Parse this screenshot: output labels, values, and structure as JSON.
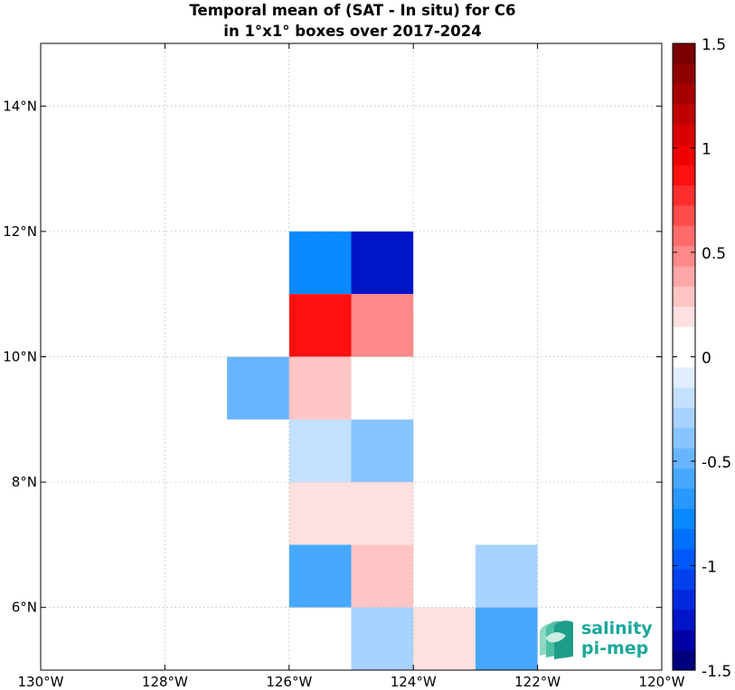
{
  "chart_data": {
    "type": "heatmap",
    "title_lines": [
      "Temporal mean of (SAT - In situ) for C6",
      "in 1°x1° boxes over 2017-2024"
    ],
    "xlim": [
      -130,
      -120
    ],
    "ylim": [
      5,
      15
    ],
    "x_ticks": [
      {
        "value": -130,
        "label": "130°W"
      },
      {
        "value": -128,
        "label": "128°W"
      },
      {
        "value": -126,
        "label": "126°W"
      },
      {
        "value": -124,
        "label": "124°W"
      },
      {
        "value": -122,
        "label": "122°W"
      },
      {
        "value": -120,
        "label": "120°W"
      }
    ],
    "y_ticks": [
      {
        "value": 6,
        "label": "6°N"
      },
      {
        "value": 8,
        "label": "8°N"
      },
      {
        "value": 10,
        "label": "10°N"
      },
      {
        "value": 12,
        "label": "12°N"
      },
      {
        "value": 14,
        "label": "14°N"
      }
    ],
    "grid": true,
    "cells": [
      {
        "lon": -126,
        "lat": 11,
        "value": -0.8
      },
      {
        "lon": -125,
        "lat": 11,
        "value": -1.3
      },
      {
        "lon": -126,
        "lat": 10,
        "value": 0.85
      },
      {
        "lon": -125,
        "lat": 10,
        "value": 0.5
      },
      {
        "lon": -127,
        "lat": 9,
        "value": -0.5
      },
      {
        "lon": -126,
        "lat": 9,
        "value": 0.3
      },
      {
        "lon": -126,
        "lat": 8,
        "value": -0.15
      },
      {
        "lon": -125,
        "lat": 8,
        "value": -0.4
      },
      {
        "lon": -126,
        "lat": 7,
        "value": 0.18
      },
      {
        "lon": -125,
        "lat": 7,
        "value": 0.18
      },
      {
        "lon": -126,
        "lat": 6,
        "value": -0.55
      },
      {
        "lon": -125,
        "lat": 6,
        "value": 0.3
      },
      {
        "lon": -123,
        "lat": 6,
        "value": -0.3
      },
      {
        "lon": -125,
        "lat": 5,
        "value": -0.3
      },
      {
        "lon": -124,
        "lat": 5,
        "value": 0.18
      },
      {
        "lon": -123,
        "lat": 5,
        "value": -0.55
      }
    ],
    "colorbar": {
      "range": [
        -1.5,
        1.5
      ],
      "ticks": [
        {
          "value": 1.5,
          "label": "1.5"
        },
        {
          "value": 1,
          "label": "1"
        },
        {
          "value": 0.5,
          "label": "0.5"
        },
        {
          "value": 0,
          "label": "0"
        },
        {
          "value": -0.5,
          "label": "-0.5"
        },
        {
          "value": -1,
          "label": "-1"
        },
        {
          "value": -1.5,
          "label": "-1.5"
        }
      ],
      "colors": [
        "#00007f",
        "#0000a8",
        "#0014c8",
        "#0028dc",
        "#0040ee",
        "#0058fa",
        "#0070ff",
        "#0a88ff",
        "#2898ff",
        "#48a8ff",
        "#68b4ff",
        "#88c4ff",
        "#a8d2ff",
        "#c4e0ff",
        "#e0eeff",
        "#ffffff",
        "#ffffff",
        "#ffe0e0",
        "#ffc4c4",
        "#ffa6a6",
        "#ff8888",
        "#ff6a6a",
        "#ff4c4c",
        "#ff2e2e",
        "#ff1010",
        "#ee0000",
        "#d80000",
        "#c00000",
        "#a80000",
        "#900000",
        "#7a0000"
      ]
    }
  },
  "logo": {
    "line1": "salinity",
    "line2": "pi-mep",
    "color": "#1aa79b"
  }
}
